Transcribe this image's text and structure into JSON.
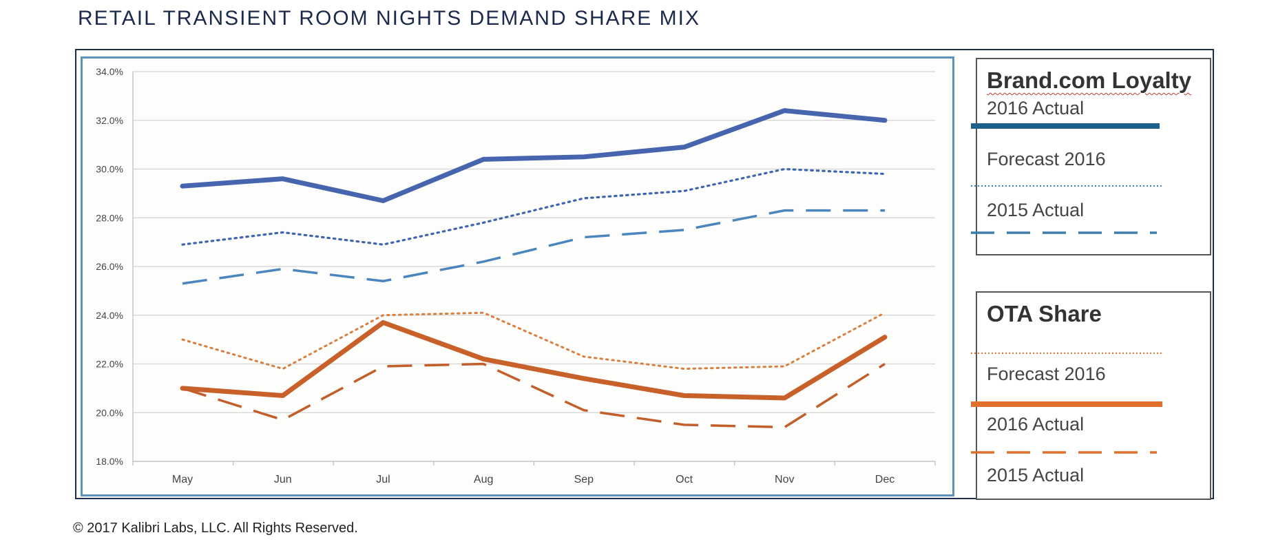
{
  "page": {
    "title": "RETAIL TRANSIENT ROOM NIGHTS DEMAND SHARE MIX",
    "copyright": "© 2017 Kalibri Labs, LLC. All Rights Reserved."
  },
  "legend": {
    "brand": {
      "title": "Brand.com Loyalty",
      "items": [
        "2016 Actual",
        "Forecast 2016",
        "2015 Actual"
      ]
    },
    "ota": {
      "title": "OTA Share",
      "items": [
        "Forecast 2016",
        "2016 Actual",
        "2015 Actual"
      ]
    }
  },
  "colors": {
    "brand_actual_2016": "#4764ae",
    "brand_forecast_2016": "#3f64b0",
    "brand_actual_2015": "#4a86bd",
    "ota_forecast_2016": "#d87e3f",
    "ota_actual_2016": "#c8602a",
    "ota_actual_2015": "#c25e2a",
    "legend_brand_solid": "#1e5f8c",
    "legend_brand_dotted": "#3b7fc0",
    "legend_brand_dashed": "#3d7ea8",
    "legend_ota": "#e0702a"
  },
  "chart_data": {
    "type": "line",
    "categories": [
      "May",
      "Jun",
      "Jul",
      "Aug",
      "Sep",
      "Oct",
      "Nov",
      "Dec"
    ],
    "ylim": [
      18.0,
      34.0
    ],
    "yticks": [
      "18.0%",
      "20.0%",
      "22.0%",
      "24.0%",
      "26.0%",
      "28.0%",
      "30.0%",
      "32.0%",
      "34.0%"
    ],
    "grid": true,
    "series": [
      {
        "name": "Brand.com Loyalty 2016 Actual",
        "style": "solid-thick",
        "values": [
          29.3,
          29.6,
          28.7,
          30.4,
          30.5,
          30.9,
          32.4,
          32.0
        ]
      },
      {
        "name": "Brand.com Loyalty Forecast 2016",
        "style": "dotted",
        "values": [
          26.9,
          27.4,
          26.9,
          27.8,
          28.8,
          29.1,
          30.0,
          29.8
        ]
      },
      {
        "name": "Brand.com Loyalty 2015 Actual",
        "style": "dashed",
        "values": [
          25.3,
          25.9,
          25.4,
          26.2,
          27.2,
          27.5,
          28.3,
          28.3
        ]
      },
      {
        "name": "OTA Share Forecast 2016",
        "style": "dotted",
        "values": [
          23.0,
          21.8,
          24.0,
          24.1,
          22.3,
          21.8,
          21.9,
          24.1
        ]
      },
      {
        "name": "OTA Share 2016 Actual",
        "style": "solid-thick",
        "values": [
          21.0,
          20.7,
          23.7,
          22.2,
          21.4,
          20.7,
          20.6,
          23.1
        ]
      },
      {
        "name": "OTA Share 2015 Actual",
        "style": "dashed",
        "values": [
          21.0,
          19.7,
          21.9,
          22.0,
          20.1,
          19.5,
          19.4,
          22.0
        ]
      }
    ]
  }
}
